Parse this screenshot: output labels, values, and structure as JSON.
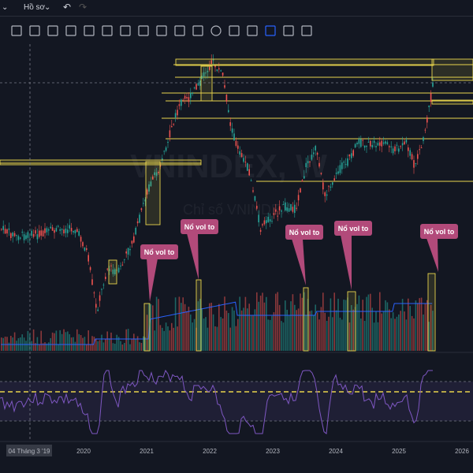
{
  "topbar": {
    "profile_label": "Hồ sơ",
    "undo": "↶",
    "redo": "↷"
  },
  "toolbar": {
    "tools": [
      "select-icon",
      "trendline-icon",
      "path-icon",
      "text-icon",
      "fib-icon",
      "channel-icon",
      "gann-icon",
      "measure-icon",
      "brush-icon",
      "ruler-icon",
      "zoom-icon",
      "circle-icon",
      "note-icon",
      "eraser-icon",
      "crosshair-icon",
      "hline-icon",
      "dash-icon"
    ]
  },
  "watermark": {
    "symbol": "VNINDEX, W",
    "name": "Chỉ số VNINDEX"
  },
  "colors": {
    "up": "#26a69a",
    "down": "#ef5350",
    "highlight": "#e8d44d",
    "callout": "#b24a7a",
    "rsi": "#7e57c2",
    "ma": "#2962ff"
  },
  "chart_data": {
    "type": "candlestick-with-volume-and-rsi",
    "x_axis_labels": [
      "2020",
      "2021",
      "2022",
      "2023",
      "2024",
      "2025",
      "2026"
    ],
    "crosshair_date": "04 Tháng 3 '19",
    "annotations": [
      "Nổ vol to",
      "Nổ vol to",
      "Nổ vol to",
      "Nổ vol to",
      "Nổ vol to"
    ]
  }
}
